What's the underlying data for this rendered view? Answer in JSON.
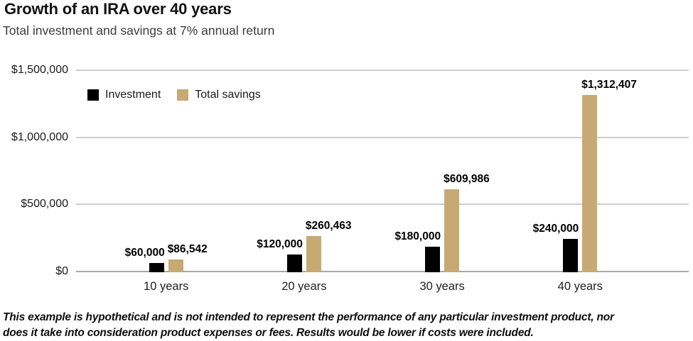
{
  "chart_data": {
    "type": "bar",
    "title": "Growth of an IRA over 40 years",
    "subtitle": "Total investment and savings at 7% annual return",
    "categories": [
      "10 years",
      "20 years",
      "30 years",
      "40 years"
    ],
    "series": [
      {
        "name": "Investment",
        "color": "#000000",
        "values": [
          60000,
          120000,
          180000,
          240000
        ],
        "labels": [
          "$60,000",
          "$120,000",
          "$180,000",
          "$240,000"
        ]
      },
      {
        "name": "Total savings",
        "color": "#C6A973",
        "values": [
          86542,
          260463,
          609986,
          1312407
        ],
        "labels": [
          "$86,542",
          "$260,463",
          "$609,986",
          "$1,312,407"
        ]
      }
    ],
    "yticks": [
      {
        "value": 0,
        "label": "$0"
      },
      {
        "value": 500000,
        "label": "$500,000"
      },
      {
        "value": 1000000,
        "label": "$1,000,000"
      },
      {
        "value": 1500000,
        "label": "$1,500,000"
      }
    ],
    "ylim": [
      0,
      1500000
    ],
    "grid": true,
    "legend_position": "top-left"
  },
  "colors": {
    "investment": "#000000",
    "savings": "#C6A973",
    "gridline": "#cdcdcd",
    "axis_line": "#a9a9a9"
  },
  "footer": {
    "lines": [
      "This example is hypothetical and is not intended to represent the performance of any particular investment product, nor",
      "does it take into consideration product expenses or fees. Results would be lower if costs were included."
    ]
  }
}
